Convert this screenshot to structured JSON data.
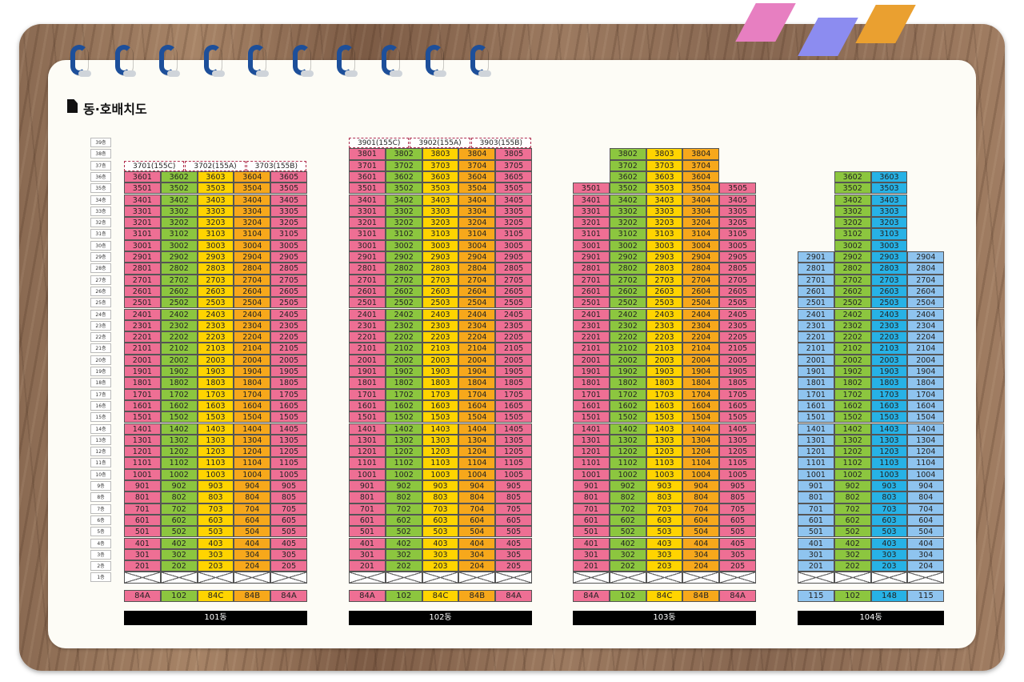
{
  "title": "동·호배치도",
  "colors": {
    "pink": "#ee6f94",
    "green": "#8cc63f",
    "yellow": "#ffd400",
    "orange": "#f7a81b",
    "lightblue": "#8fc4ef",
    "blue": "#27b2e6",
    "tab1": "#e77fc1",
    "tab2": "#8c8cf0",
    "tab3": "#eaa030",
    "ring": "#1d4f9a"
  },
  "floor_labels": [
    "39층",
    "38층",
    "37층",
    "36층",
    "35층",
    "34층",
    "33층",
    "32층",
    "31층",
    "30층",
    "29층",
    "28층",
    "27층",
    "26층",
    "25층",
    "24층",
    "23층",
    "22층",
    "21층",
    "20층",
    "19층",
    "18층",
    "17층",
    "16층",
    "15층",
    "14층",
    "13층",
    "12층",
    "11층",
    "10층",
    "9층",
    "8층",
    "7층",
    "6층",
    "5층",
    "4층",
    "3층",
    "2층",
    "1층"
  ],
  "buildings": [
    {
      "name": "101동",
      "columns": [
        {
          "line": 1,
          "color": "pink",
          "top": 36
        },
        {
          "line": 2,
          "color": "green",
          "top": 36
        },
        {
          "line": 3,
          "color": "yellow",
          "top": 36
        },
        {
          "line": 4,
          "color": "orange",
          "top": 36
        },
        {
          "line": 5,
          "color": "pink",
          "top": 36
        }
      ],
      "penthouse_floor": 37,
      "penthouse_units": [
        "3701(155C)",
        "3702(155A)",
        "3703(155B)"
      ],
      "types": [
        "84A",
        "102",
        "84C",
        "84B",
        "84A"
      ]
    },
    {
      "name": "102동",
      "columns": [
        {
          "line": 1,
          "color": "pink",
          "top": 38
        },
        {
          "line": 2,
          "color": "green",
          "top": 38
        },
        {
          "line": 3,
          "color": "yellow",
          "top": 38
        },
        {
          "line": 4,
          "color": "orange",
          "top": 38
        },
        {
          "line": 5,
          "color": "pink",
          "top": 38
        }
      ],
      "penthouse_floor": 39,
      "penthouse_units": [
        "3901(155C)",
        "3902(155A)",
        "3903(155B)"
      ],
      "types": [
        "84A",
        "102",
        "84C",
        "84B",
        "84A"
      ]
    },
    {
      "name": "103동",
      "columns": [
        {
          "line": 1,
          "color": "pink",
          "top": 35
        },
        {
          "line": 2,
          "color": "green",
          "top": 38
        },
        {
          "line": 3,
          "color": "yellow",
          "top": 38
        },
        {
          "line": 4,
          "color": "orange",
          "top": 38
        },
        {
          "line": 5,
          "color": "pink",
          "top": 35
        }
      ],
      "types": [
        "84A",
        "102",
        "84C",
        "84B",
        "84A"
      ]
    },
    {
      "name": "104동",
      "columns": [
        {
          "line": 1,
          "color": "lightblue",
          "top": 29
        },
        {
          "line": 2,
          "color": "green",
          "top": 36
        },
        {
          "line": 3,
          "color": "blue",
          "top": 36
        },
        {
          "line": 4,
          "color": "lightblue",
          "top": 29
        }
      ],
      "types": [
        "115",
        "102",
        "148",
        "115"
      ]
    }
  ]
}
